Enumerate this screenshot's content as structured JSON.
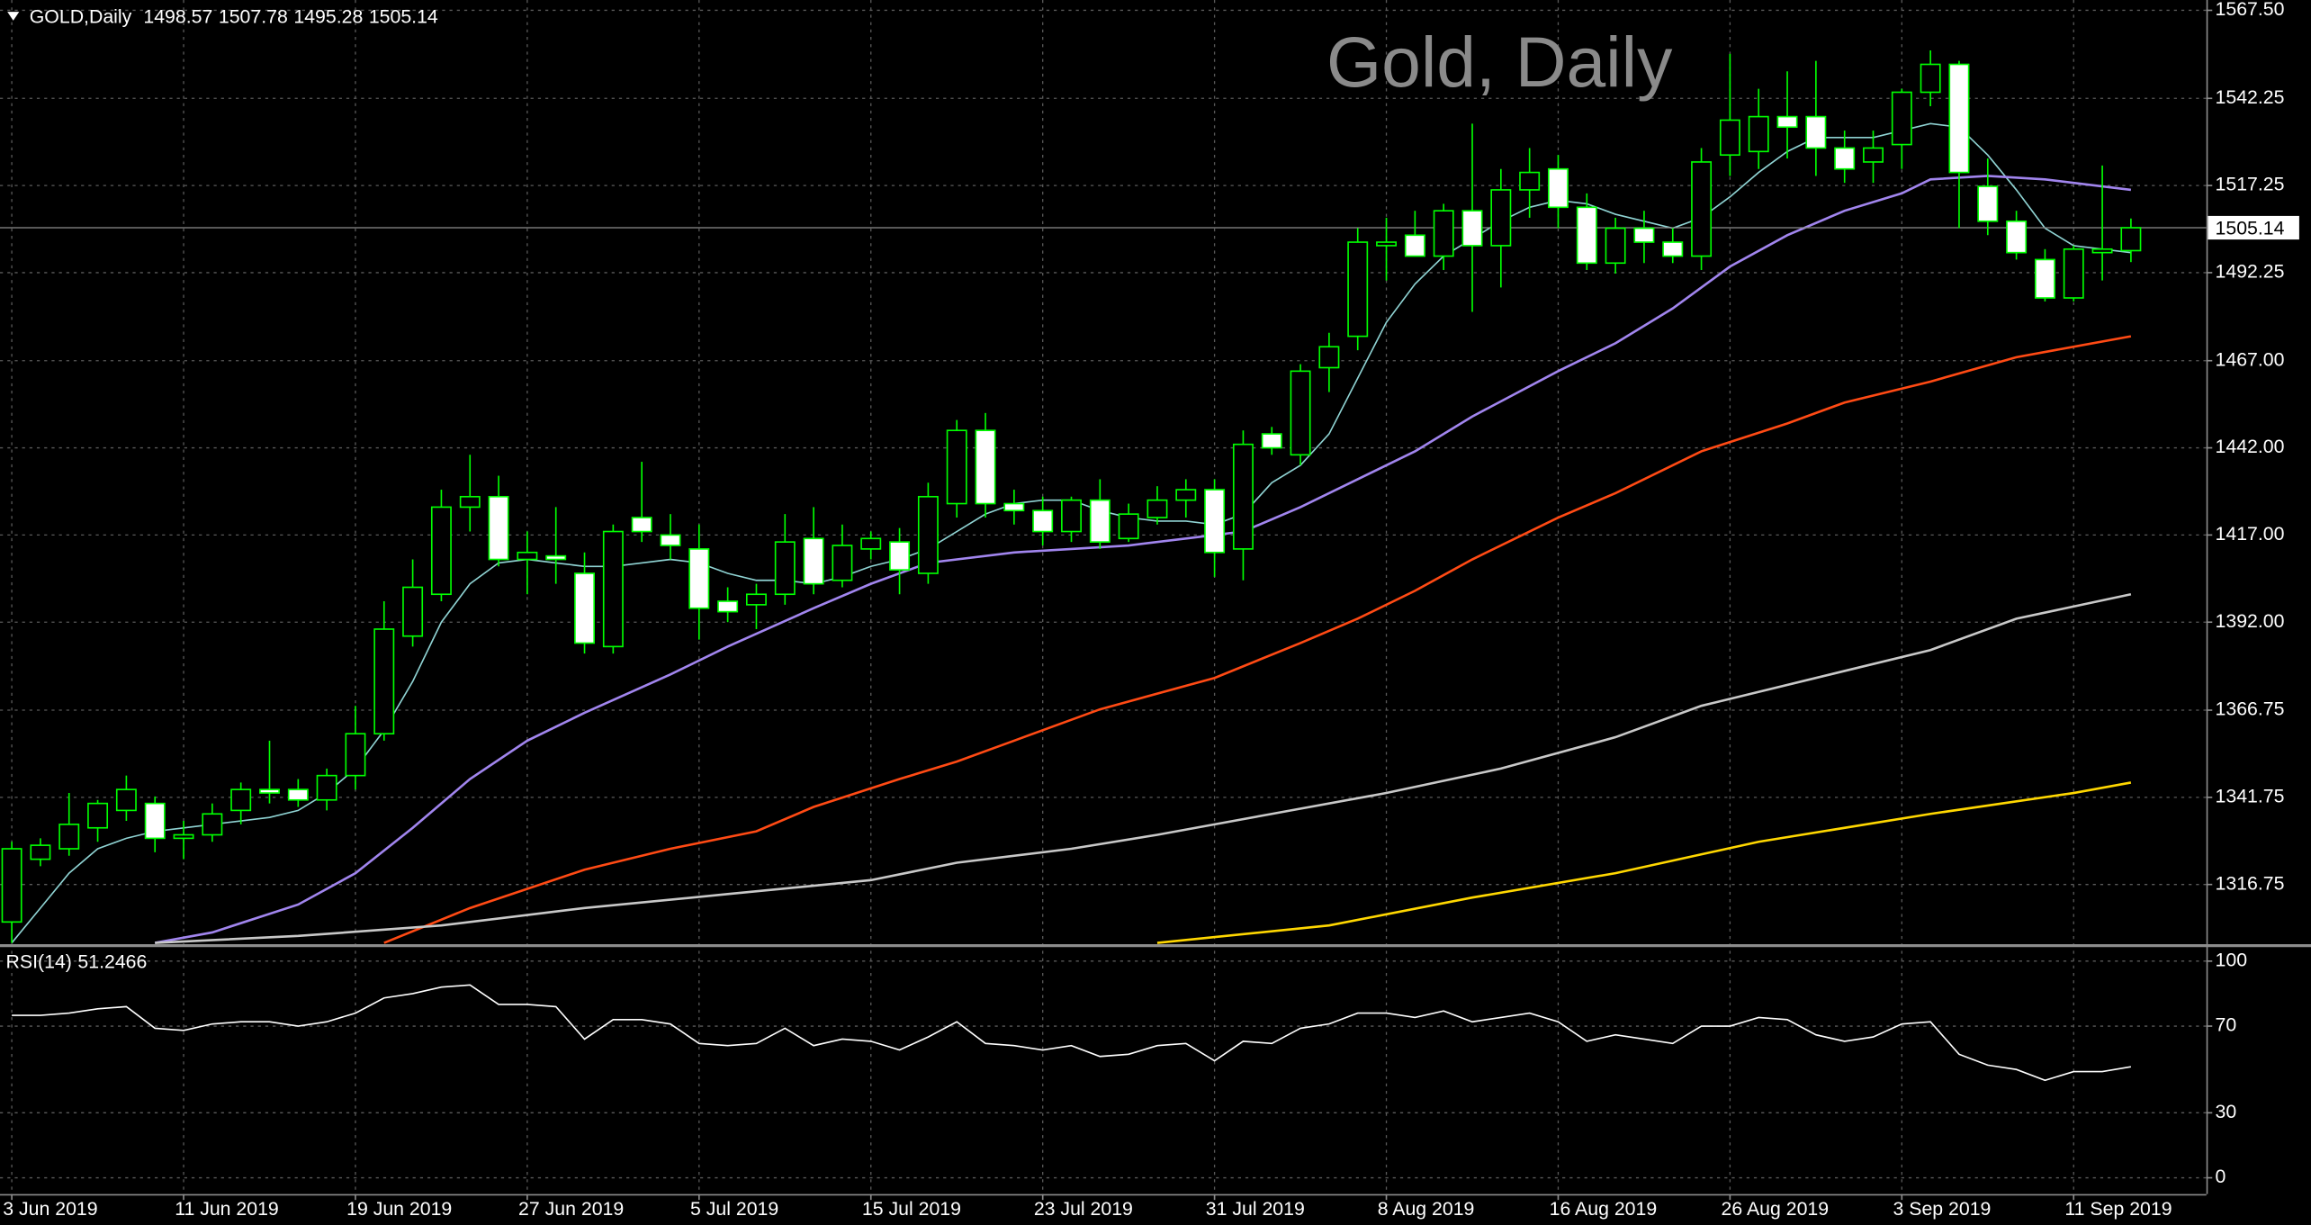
{
  "chart_data": [
    {
      "type": "candlestick",
      "symbol": "GOLD,Daily",
      "title": "Gold, Daily",
      "categories": [
        "3 Jun 2019",
        null,
        null,
        null,
        null,
        null,
        "11 Jun 2019",
        null,
        null,
        null,
        null,
        null,
        "19 Jun 2019",
        null,
        null,
        null,
        null,
        null,
        "27 Jun 2019",
        null,
        null,
        null,
        null,
        null,
        "5 Jul 2019",
        null,
        null,
        null,
        null,
        null,
        "15 Jul 2019",
        null,
        null,
        null,
        null,
        null,
        "23 Jul 2019",
        null,
        null,
        null,
        null,
        null,
        "31 Jul 2019",
        null,
        null,
        null,
        null,
        null,
        "8 Aug 2019",
        null,
        null,
        null,
        null,
        null,
        "16 Aug 2019",
        null,
        null,
        null,
        null,
        null,
        "26 Aug 2019",
        null,
        null,
        null,
        null,
        null,
        "3 Sep 2019",
        null,
        null,
        null,
        null,
        null,
        "11 Sep 2019",
        null,
        null
      ],
      "open": [
        1306,
        1324,
        1327,
        1333,
        1338,
        1340,
        1330,
        1331,
        1338,
        1344,
        1344,
        1341,
        1348,
        1360,
        1388,
        1400,
        1425,
        1428,
        1410,
        1411,
        1406,
        1385,
        1422,
        1417,
        1413,
        1398,
        1397,
        1400,
        1416,
        1404,
        1413,
        1415,
        1406,
        1426,
        1447,
        1426,
        1424,
        1418,
        1427,
        1416,
        1422,
        1427,
        1430,
        1413,
        1446,
        1440,
        1465,
        1474,
        1500,
        1503,
        1497,
        1510,
        1500,
        1516,
        1522,
        1511,
        1495,
        1505,
        1501,
        1497,
        1526,
        1527,
        1537,
        1537,
        1528,
        1524,
        1529,
        1544,
        1552,
        1517,
        1507,
        1496,
        1485,
        1498,
        1498.57
      ],
      "high": [
        1329,
        1330,
        1343,
        1341,
        1348,
        1342,
        1335,
        1340,
        1346,
        1358,
        1347,
        1350,
        1368,
        1398,
        1410,
        1430,
        1440,
        1434,
        1418,
        1425,
        1412,
        1420,
        1438,
        1423,
        1420,
        1402,
        1403,
        1423,
        1425,
        1420,
        1418,
        1419,
        1432,
        1450,
        1452,
        1430,
        1428,
        1428,
        1433,
        1426,
        1431,
        1433,
        1433,
        1447,
        1448,
        1466,
        1475,
        1505,
        1508,
        1510,
        1512,
        1535,
        1522,
        1528,
        1526,
        1515,
        1508,
        1510,
        1505,
        1528,
        1555,
        1545,
        1550,
        1553,
        1533,
        1533,
        1545,
        1556,
        1553,
        1525,
        1510,
        1499,
        1500,
        1523,
        1507.78
      ],
      "low": [
        1300,
        1322,
        1325,
        1329,
        1335,
        1326,
        1324,
        1329,
        1334,
        1340,
        1339,
        1338,
        1344,
        1358,
        1385,
        1398,
        1418,
        1408,
        1400,
        1403,
        1383,
        1383,
        1415,
        1410,
        1387,
        1392,
        1390,
        1397,
        1400,
        1402,
        1410,
        1400,
        1403,
        1422,
        1422,
        1420,
        1414,
        1415,
        1413,
        1415,
        1420,
        1422,
        1405,
        1404,
        1440,
        1437,
        1458,
        1470,
        1490,
        1497,
        1493,
        1481,
        1488,
        1508,
        1505,
        1493,
        1492,
        1495,
        1495,
        1493,
        1520,
        1522,
        1525,
        1520,
        1518,
        1518,
        1522,
        1540,
        1505,
        1503,
        1496,
        1484,
        1484,
        1490,
        1495.28
      ],
      "close": [
        1327,
        1328,
        1334,
        1340,
        1344,
        1330,
        1331,
        1337,
        1344,
        1343,
        1341,
        1348,
        1360,
        1390,
        1402,
        1425,
        1428,
        1410,
        1412,
        1410,
        1386,
        1418,
        1418,
        1414,
        1396,
        1395,
        1400,
        1415,
        1403,
        1414,
        1416,
        1407,
        1428,
        1447,
        1426,
        1424,
        1418,
        1427,
        1415,
        1423,
        1427,
        1430,
        1412,
        1443,
        1442,
        1464,
        1471,
        1501,
        1501,
        1497,
        1510,
        1500,
        1516,
        1521,
        1511,
        1495,
        1505,
        1501,
        1497,
        1524,
        1536,
        1537,
        1534,
        1528,
        1522,
        1528,
        1544,
        1552,
        1521,
        1507,
        1498,
        1485,
        1499,
        1499,
        1505.14
      ],
      "up_color": "#000000",
      "down_color": "#ffffff",
      "wick_color": "#00ff00",
      "series": [
        {
          "color": "#8fd3d3",
          "values": [
            1300,
            1310,
            1320,
            1327,
            1330,
            1332,
            1333,
            1334,
            1335,
            1336,
            1338,
            1343,
            1350,
            1361,
            1375,
            1392,
            1403,
            1409,
            1410,
            1409,
            1408,
            1408,
            1409,
            1410,
            1409,
            1406,
            1404,
            1404,
            1403,
            1405,
            1408,
            1410,
            1413,
            1418,
            1423,
            1426,
            1427,
            1427,
            1424,
            1422,
            1421,
            1421,
            1420,
            1423,
            1432,
            1437,
            1446,
            1462,
            1478,
            1489,
            1497,
            1502,
            1507,
            1511,
            1513,
            1512,
            1509,
            1507,
            1505,
            1508,
            1514,
            1521,
            1527,
            1531,
            1531,
            1531,
            1533,
            1535,
            1534,
            1526,
            1516,
            1505,
            1500,
            1499,
            1498
          ]
        },
        {
          "color": "#a185ee",
          "x": [
            5,
            7,
            10,
            12,
            14,
            16,
            18,
            19,
            20,
            23,
            25,
            28,
            30,
            32,
            35,
            37,
            39,
            41,
            43,
            45,
            47,
            49,
            51,
            54,
            56,
            58,
            60,
            62,
            64,
            66,
            67,
            69,
            71,
            73,
            74
          ],
          "values": [
            1300,
            1303,
            1311,
            1320,
            1333,
            1347,
            1358,
            1362,
            1366,
            1377,
            1385,
            1396,
            1403,
            1409,
            1412,
            1413,
            1414,
            1416,
            1418,
            1425,
            1433,
            1441,
            1451,
            1464,
            1472,
            1482,
            1494,
            1503,
            1510,
            1515,
            1519,
            1520,
            1519,
            1517,
            1516
          ]
        },
        {
          "color": "#ff4a14",
          "x": [
            13,
            16,
            20,
            23,
            26,
            28,
            31,
            33,
            35,
            38,
            42,
            45,
            47,
            49,
            51,
            54,
            56,
            59,
            62,
            64,
            67,
            70,
            74
          ],
          "values": [
            1300,
            1310,
            1321,
            1327,
            1332,
            1339,
            1347,
            1352,
            1358,
            1367,
            1376,
            1386,
            1393,
            1401,
            1410,
            1422,
            1429,
            1441,
            1449,
            1455,
            1461,
            1468,
            1474
          ]
        },
        {
          "color": "#c8c8c8",
          "x": [
            5,
            10,
            15,
            20,
            25,
            30,
            33,
            37,
            40,
            44,
            48,
            52,
            56,
            59,
            64,
            67,
            70,
            74
          ],
          "values": [
            1300,
            1302,
            1305,
            1310,
            1314,
            1318,
            1323,
            1327,
            1331,
            1337,
            1343,
            1350,
            1359,
            1368,
            1378,
            1384,
            1393,
            1400
          ]
        },
        {
          "color": "#ffd700",
          "x": [
            40,
            46,
            51,
            56,
            61,
            67,
            72,
            74
          ],
          "values": [
            1300,
            1305,
            1313,
            1320,
            1329,
            1337,
            1343,
            1346
          ]
        }
      ],
      "ylim": [
        1299.42,
        1570.46
      ],
      "yticks": [
        {
          "value": 1567.5,
          "label": "1567.50"
        },
        {
          "value": 1542.25,
          "label": "1542.25"
        },
        {
          "value": 1517.25,
          "label": "1517.25"
        },
        {
          "value": 1492.25,
          "label": "1492.25"
        },
        {
          "value": 1467,
          "label": "1467.00"
        },
        {
          "value": 1442,
          "label": "1442.00"
        },
        {
          "value": 1417,
          "label": "1417.00"
        },
        {
          "value": 1392,
          "label": "1392.00"
        },
        {
          "value": 1366.75,
          "label": "1366.75"
        },
        {
          "value": 1341.75,
          "label": "1341.75"
        },
        {
          "value": 1316.75,
          "label": "1316.75"
        }
      ],
      "grid": true
    },
    {
      "type": "line",
      "title": "RSI(14)",
      "color": "#ffffff",
      "values": [
        75,
        75,
        76,
        78,
        79,
        69,
        68,
        71,
        72,
        72,
        70,
        72,
        76,
        83,
        85,
        88,
        89,
        80,
        80,
        79,
        64,
        73,
        73,
        71,
        62,
        61,
        62,
        69,
        61,
        64,
        63,
        59,
        65,
        72,
        62,
        61,
        59,
        61,
        56,
        57,
        61,
        62,
        54,
        63,
        62,
        69,
        71,
        76,
        76,
        74,
        77,
        72,
        74,
        76,
        72,
        63,
        66,
        64,
        62,
        70,
        70,
        74,
        73,
        66,
        63,
        65,
        71,
        72,
        57,
        52,
        50,
        45,
        49,
        49,
        51.2466
      ],
      "ylim": [
        -7.5,
        106.8
      ],
      "yticks": [
        100,
        70,
        30,
        0
      ],
      "grid": true
    }
  ]
}
